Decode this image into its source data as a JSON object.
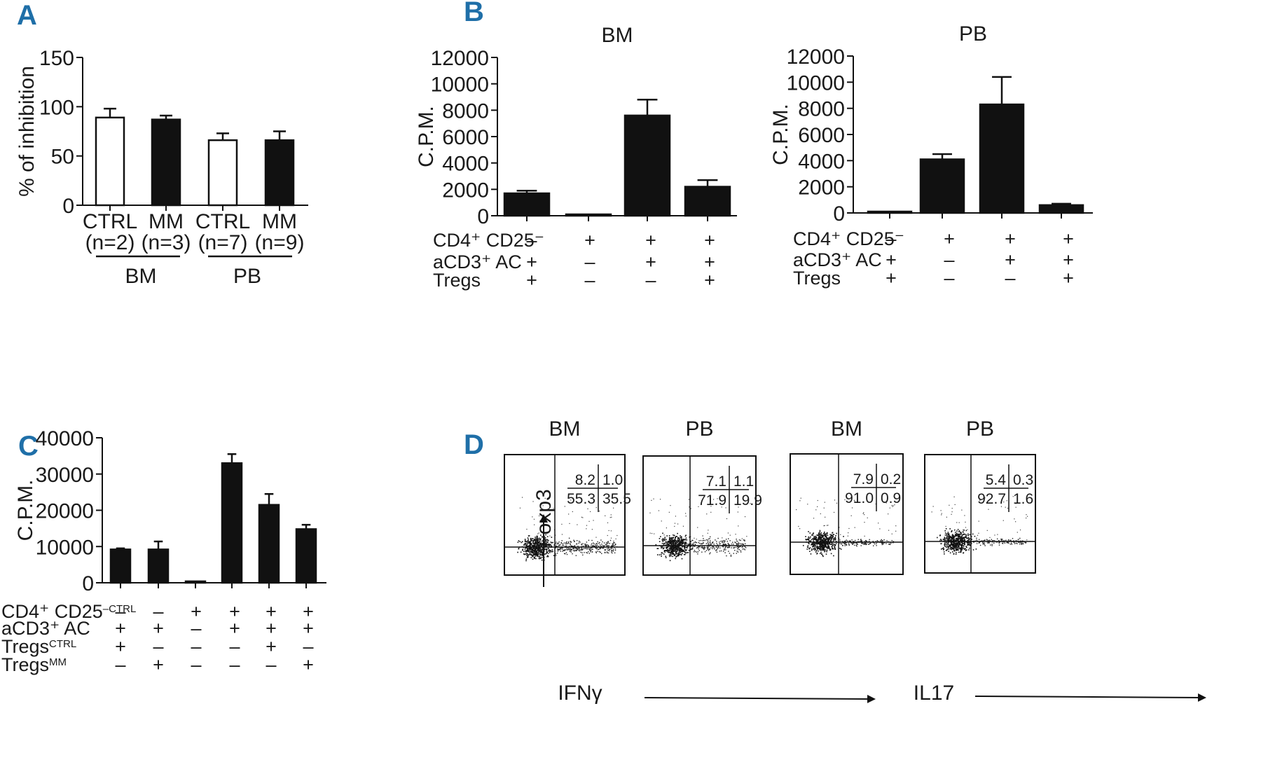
{
  "chart_data": [
    {
      "panel": "A",
      "type": "bar",
      "ylabel": "% of inhibition",
      "ylim": [
        0,
        150
      ],
      "yticks": [
        "0",
        "50",
        "100",
        "150"
      ],
      "categories": [
        "CTRL\n(n=2)",
        "MM\n(n=3)",
        "CTRL\n(n=7)",
        "MM\n(n=9)"
      ],
      "cat_lines": [
        [
          "CTRL",
          "(n=2)"
        ],
        [
          "MM",
          "(n=3)"
        ],
        [
          "CTRL",
          "(n=7)"
        ],
        [
          "MM",
          "(n=9)"
        ]
      ],
      "values": [
        89,
        87,
        66,
        66
      ],
      "errors": [
        9,
        4,
        7,
        9
      ],
      "fills": [
        "#ffffff",
        "#111111",
        "#ffffff",
        "#111111"
      ],
      "groups": [
        "BM",
        "PB"
      ]
    },
    {
      "panel": "B",
      "type": "bar",
      "title": "BM",
      "ylabel": "C.P.M.",
      "ylim": [
        0,
        12000
      ],
      "yticks": [
        "0",
        "2000",
        "4000",
        "6000",
        "8000",
        "10000",
        "12000"
      ],
      "values": [
        1700,
        50,
        7600,
        2200
      ],
      "errors": [
        200,
        0,
        1200,
        500
      ],
      "rows": [
        {
          "label": "CD4⁺ CD25⁻",
          "signs": [
            "–",
            "+",
            "+",
            "+"
          ]
        },
        {
          "label": "aCD3⁺ AC",
          "signs": [
            "+",
            "–",
            "+",
            "+"
          ]
        },
        {
          "label": "Tregs",
          "signs": [
            "+",
            "–",
            "–",
            "+"
          ]
        }
      ]
    },
    {
      "panel": "B",
      "type": "bar",
      "title": "PB",
      "ylabel": "C.P.M.",
      "ylim": [
        0,
        12000
      ],
      "yticks": [
        "0",
        "2000",
        "4000",
        "6000",
        "8000",
        "10000",
        "12000"
      ],
      "values": [
        0,
        4100,
        8300,
        600
      ],
      "errors": [
        0,
        400,
        2100,
        100
      ],
      "rows": [
        {
          "label": "CD4⁺ CD25⁻",
          "signs": [
            "–",
            "+",
            "+",
            "+"
          ]
        },
        {
          "label": "aCD3⁺ AC",
          "signs": [
            "+",
            "–",
            "+",
            "+"
          ]
        },
        {
          "label": "Tregs",
          "signs": [
            "+",
            "–",
            "–",
            "+"
          ]
        }
      ]
    },
    {
      "panel": "C",
      "type": "bar",
      "ylabel": "C.P.M.",
      "ylim": [
        0,
        40000
      ],
      "yticks": [
        "0",
        "10000",
        "20000",
        "30000",
        "40000"
      ],
      "values": [
        9200,
        9200,
        400,
        33000,
        21500,
        14800
      ],
      "errors": [
        300,
        2200,
        0,
        2500,
        3000,
        1200
      ],
      "rows": [
        {
          "label": "CD4⁺ CD25",
          "sup": "–CTRL",
          "signs": [
            "–",
            "–",
            "+",
            "+",
            "+",
            "+"
          ]
        },
        {
          "label": "aCD3⁺ AC",
          "sup": "",
          "signs": [
            "+",
            "+",
            "–",
            "+",
            "+",
            "+"
          ]
        },
        {
          "label": "Tregs",
          "sup": "CTRL",
          "signs": [
            "+",
            "–",
            "–",
            "–",
            "+",
            "–"
          ]
        },
        {
          "label": "Tregs",
          "sup": "MM",
          "signs": [
            "–",
            "+",
            "–",
            "–",
            "–",
            "+"
          ]
        }
      ]
    },
    {
      "panel": "D",
      "type": "scatter",
      "ylabel": "Foxp3",
      "xlabels": [
        "IFNγ",
        "IL17"
      ],
      "plots": [
        {
          "title": "BM",
          "ul": "8.2",
          "ur": "1.0",
          "ll": "55.3",
          "lr": "35.5"
        },
        {
          "title": "PB",
          "ul": "7.1",
          "ur": "1.1",
          "ll": "71.9",
          "lr": "19.9"
        },
        {
          "title": "BM",
          "ul": "7.9",
          "ur": "0.2",
          "ll": "91.0",
          "lr": "0.9"
        },
        {
          "title": "PB",
          "ul": "5.4",
          "ur": "0.3",
          "ll": "92.7",
          "lr": "1.6"
        }
      ]
    }
  ],
  "panel_labels": [
    "A",
    "B",
    "C",
    "D"
  ]
}
